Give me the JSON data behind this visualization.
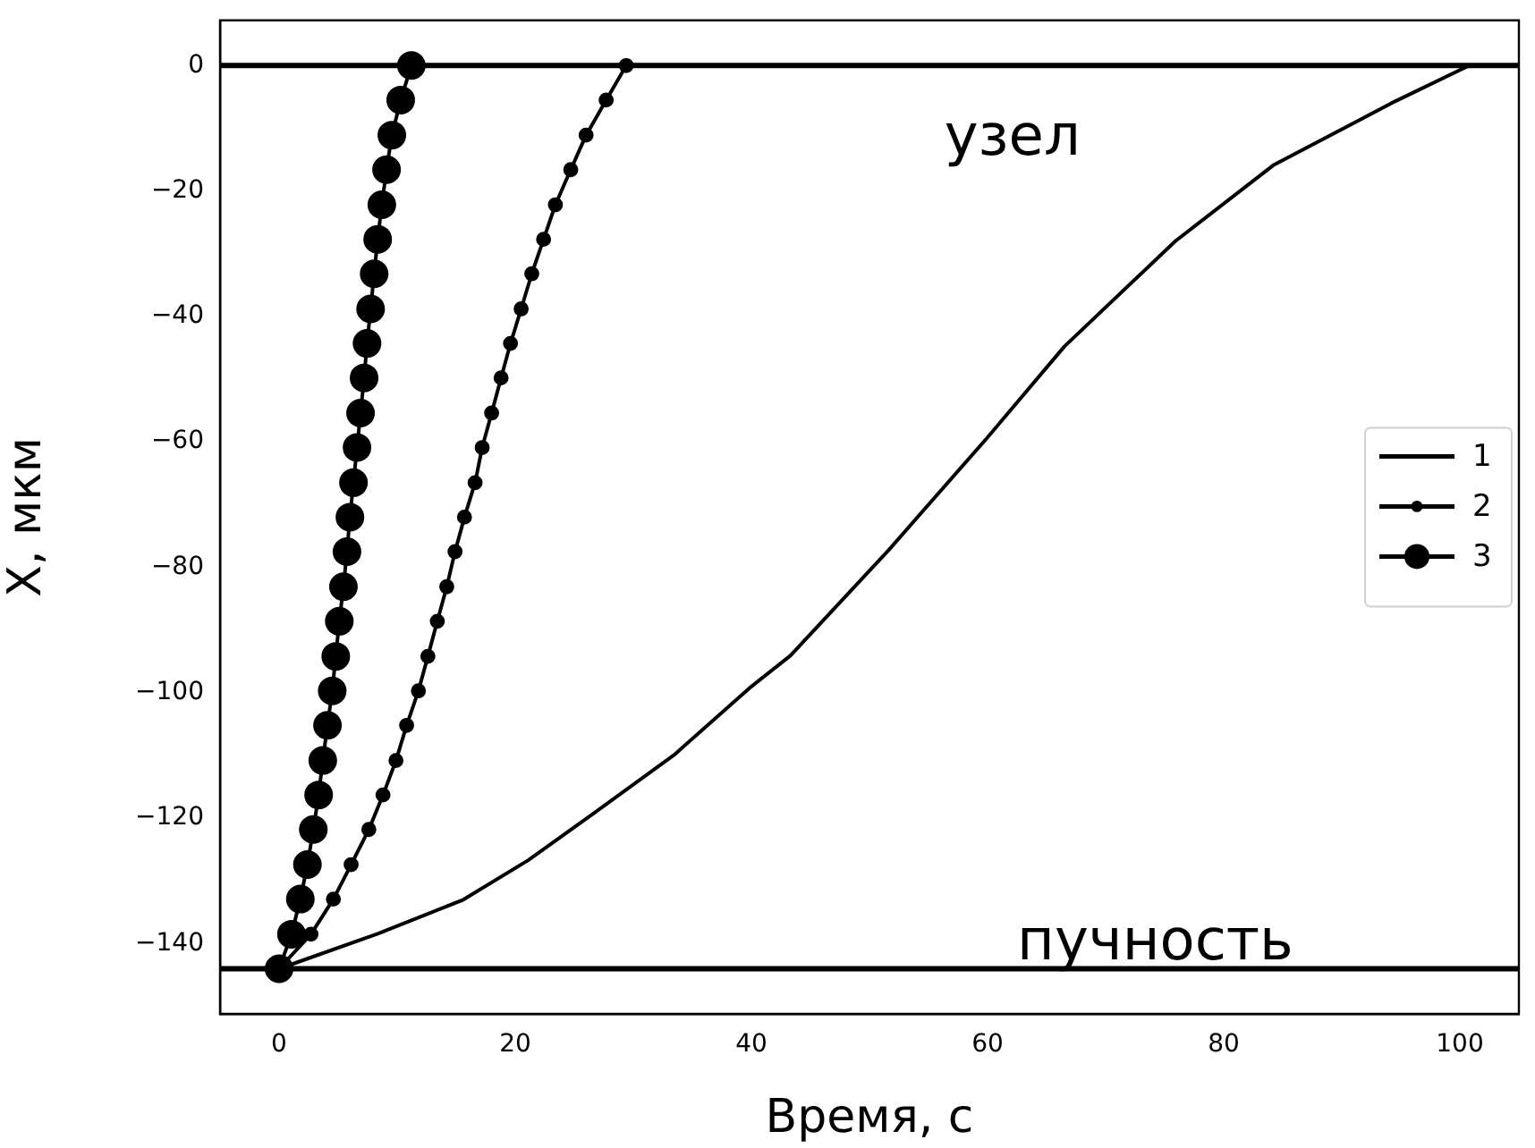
{
  "chart_data": {
    "type": "line",
    "xlabel": "Время, с",
    "ylabel": "X, мкм",
    "xlim": [
      -5,
      105
    ],
    "ylim": [
      -151.2,
      7.2
    ],
    "xticks": [
      0,
      20,
      40,
      60,
      80,
      100
    ],
    "yticks": [
      0,
      -20,
      -40,
      -60,
      -80,
      -100,
      -120,
      -140
    ],
    "grid": false,
    "legend": "right",
    "line_style": "solid",
    "series": [
      {
        "name": "1",
        "color": "#000000",
        "marker": "none",
        "x": [
          0,
          8.4,
          15.6,
          21.1,
          26.6,
          33.4,
          40,
          43.3,
          51.6,
          59.9,
          66.5,
          75.9,
          84.2,
          94.2,
          100.8
        ],
        "values": [
          -144,
          -138.4,
          -133,
          -126.7,
          -119.3,
          -110,
          -99,
          -94.1,
          -77.3,
          -59.5,
          -44.8,
          -28,
          -15.9,
          -6,
          0
        ]
      },
      {
        "name": "2",
        "color": "#000000",
        "marker": "circle",
        "x": [
          0,
          2.7,
          4.6,
          6.1,
          7.6,
          8.8,
          9.9,
          10.8,
          11.8,
          12.6,
          13.4,
          14.2,
          14.9,
          15.7,
          16.6,
          17.2,
          18,
          18.8,
          19.6,
          20.5,
          21.4,
          22.4,
          23.4,
          24.7,
          26,
          27.7,
          29.4
        ],
        "values": [
          -144,
          -138.5,
          -132.9,
          -127.4,
          -121.8,
          -116.3,
          -110.8,
          -105.2,
          -99.7,
          -94.2,
          -88.6,
          -83.1,
          -77.5,
          -72,
          -66.5,
          -60.9,
          -55.4,
          -49.8,
          -44.3,
          -38.8,
          -33.2,
          -27.7,
          -22.2,
          -16.6,
          -11.1,
          -5.5,
          0
        ]
      },
      {
        "name": "3",
        "color": "#000000",
        "marker": "circle",
        "x": [
          0,
          1.05,
          1.8,
          2.4,
          2.9,
          3.35,
          3.7,
          4.1,
          4.5,
          4.8,
          5.1,
          5.45,
          5.75,
          6,
          6.3,
          6.6,
          6.9,
          7.2,
          7.45,
          7.75,
          8.05,
          8.35,
          8.7,
          9.1,
          9.55,
          10.3,
          11.2
        ],
        "values": [
          -144,
          -138.5,
          -132.9,
          -127.4,
          -121.8,
          -116.3,
          -110.8,
          -105.2,
          -99.7,
          -94.2,
          -88.6,
          -83.1,
          -77.5,
          -72,
          -66.5,
          -60.9,
          -55.4,
          -49.8,
          -44.3,
          -38.8,
          -33.2,
          -27.7,
          -22.2,
          -16.6,
          -11.1,
          -5.5,
          0
        ]
      }
    ],
    "ref_lines": [
      {
        "axis": "y",
        "value": 0,
        "color": "#000000"
      },
      {
        "axis": "y",
        "value": -144,
        "color": "#000000"
      }
    ],
    "annotations": [
      "узел",
      "пучность"
    ]
  }
}
